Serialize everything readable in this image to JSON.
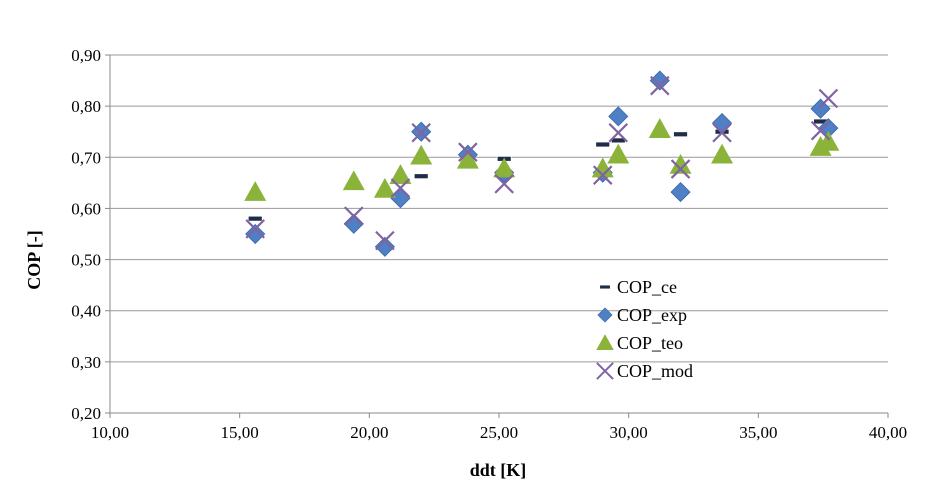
{
  "chart_data": {
    "type": "scatter",
    "title": "",
    "xlabel": "ddt  [K]",
    "ylabel": "COP [-]",
    "xlim": [
      10,
      40
    ],
    "ylim": [
      0.2,
      0.9
    ],
    "x_ticks": [
      "10,00",
      "15,00",
      "20,00",
      "25,00",
      "30,00",
      "35,00",
      "40,00"
    ],
    "y_ticks": [
      "0,20",
      "0,30",
      "0,40",
      "0,50",
      "0,60",
      "0,70",
      "0,80",
      "0,90"
    ],
    "grid": "horizontal",
    "legend_position": "lower-right",
    "series": [
      {
        "name": "COP_ce",
        "marker": "dash",
        "color": "#1f2d4a",
        "points": [
          [
            15.6,
            0.58
          ],
          [
            20.6,
            0.63
          ],
          [
            22.0,
            0.663
          ],
          [
            25.2,
            0.697
          ],
          [
            29.0,
            0.725
          ],
          [
            29.6,
            0.733
          ],
          [
            32.0,
            0.745
          ],
          [
            33.6,
            0.75
          ],
          [
            37.4,
            0.77
          ]
        ]
      },
      {
        "name": "COP_exp",
        "marker": "diamond",
        "color": "#4f7fc4",
        "points": [
          [
            15.6,
            0.55
          ],
          [
            19.4,
            0.57
          ],
          [
            20.6,
            0.525
          ],
          [
            21.2,
            0.62
          ],
          [
            22.0,
            0.75
          ],
          [
            23.8,
            0.705
          ],
          [
            25.2,
            0.67
          ],
          [
            29.0,
            0.67
          ],
          [
            29.6,
            0.78
          ],
          [
            31.2,
            0.85
          ],
          [
            32.0,
            0.632
          ],
          [
            33.6,
            0.767
          ],
          [
            37.4,
            0.795
          ],
          [
            37.7,
            0.757
          ]
        ]
      },
      {
        "name": "COP_teo",
        "marker": "triangle",
        "color": "#8bb33a",
        "points": [
          [
            15.6,
            0.632
          ],
          [
            19.4,
            0.653
          ],
          [
            20.6,
            0.638
          ],
          [
            21.2,
            0.665
          ],
          [
            22.0,
            0.703
          ],
          [
            23.8,
            0.695
          ],
          [
            25.2,
            0.678
          ],
          [
            29.0,
            0.678
          ],
          [
            29.6,
            0.705
          ],
          [
            31.2,
            0.755
          ],
          [
            32.0,
            0.685
          ],
          [
            33.6,
            0.705
          ],
          [
            37.4,
            0.72
          ],
          [
            37.7,
            0.73
          ]
        ]
      },
      {
        "name": "COP_mod",
        "marker": "x",
        "color": "#8064a2",
        "points": [
          [
            15.6,
            0.56
          ],
          [
            19.4,
            0.585
          ],
          [
            20.6,
            0.537
          ],
          [
            21.2,
            0.64
          ],
          [
            22.0,
            0.748
          ],
          [
            23.8,
            0.71
          ],
          [
            25.2,
            0.648
          ],
          [
            29.0,
            0.665
          ],
          [
            29.6,
            0.748
          ],
          [
            31.2,
            0.84
          ],
          [
            32.0,
            0.677
          ],
          [
            33.6,
            0.748
          ],
          [
            37.4,
            0.752
          ],
          [
            37.7,
            0.815
          ]
        ]
      }
    ]
  }
}
